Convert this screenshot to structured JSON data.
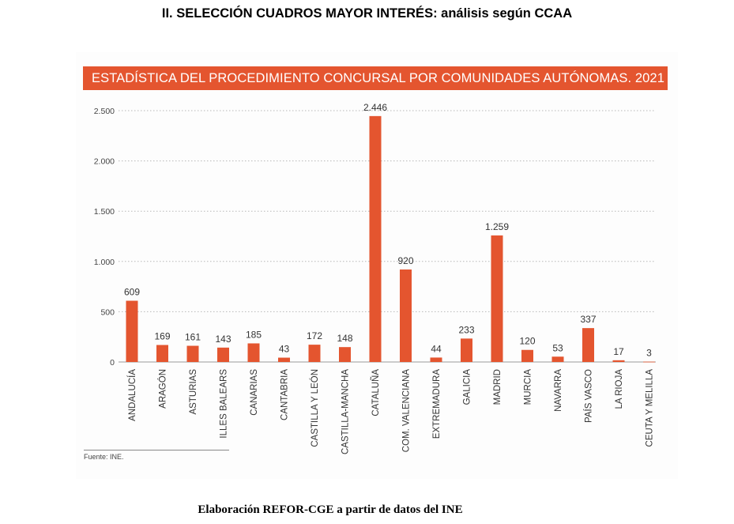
{
  "page": {
    "heading": "II. SELECCIÓN CUADROS MAYOR INTERÉS: análisis según CCAA",
    "source": "Fuente: INE.",
    "footer": "Elaboración REFOR-CGE a partir de datos del INE"
  },
  "chart_data": {
    "type": "bar",
    "title": "ESTADÍSTICA DEL PROCEDIMIENTO CONCURSAL POR COMUNIDADES AUTÓNOMAS. 2021",
    "xlabel": "",
    "ylabel": "",
    "ylim": [
      0,
      2500
    ],
    "yticks": [
      0,
      500,
      1000,
      1500,
      2000,
      2500
    ],
    "ytick_labels": [
      "0",
      "500",
      "1.000",
      "1.500",
      "2.000",
      "2.500"
    ],
    "grid": true,
    "bar_color": "#e4552f",
    "categories": [
      "ANDALUCÍA",
      "ARAGÓN",
      "ASTURIAS",
      "ILLES BALEARS",
      "CANARIAS",
      "CANTABRIA",
      "CASTILLA Y LEÓN",
      "CASTILLA-MANCHA",
      "CATALUÑA",
      "COM. VALENCIANA",
      "EXTREMADURA",
      "GALICIA",
      "MADRID",
      "MURCIA",
      "NAVARRA",
      "PAÍS VASCO",
      "LA RIOJA",
      "CEUTA Y MELILLA"
    ],
    "values": [
      609,
      169,
      161,
      143,
      185,
      43,
      172,
      148,
      2446,
      920,
      44,
      233,
      1259,
      120,
      53,
      337,
      17,
      3
    ],
    "value_labels": [
      "609",
      "169",
      "161",
      "143",
      "185",
      "43",
      "172",
      "148",
      "2.446",
      "920",
      "44",
      "233",
      "1.259",
      "120",
      "53",
      "337",
      "17",
      "3"
    ]
  }
}
